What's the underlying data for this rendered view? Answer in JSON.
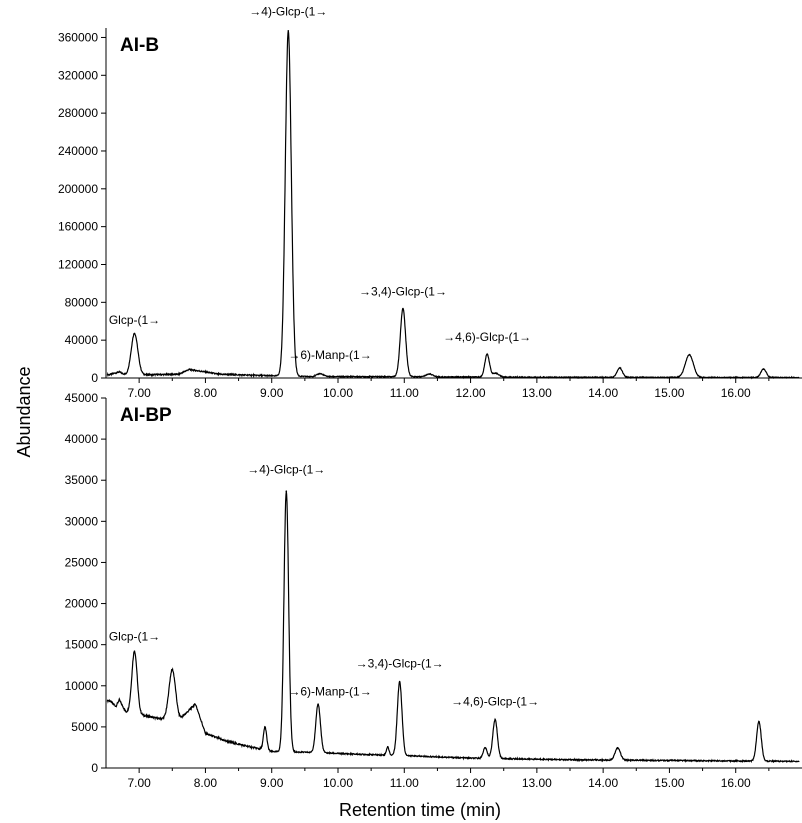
{
  "chart_data": {
    "ylabel": "Abundance",
    "xlabel": "Retention time (min)",
    "panels": [
      {
        "type": "line",
        "title": "AI-B",
        "xlim": [
          6.5,
          17.0
        ],
        "ylim": [
          0,
          370000
        ],
        "x_ticks": [
          "7.00",
          "8.00",
          "9.00",
          "10.00",
          "11.00",
          "12.00",
          "13.00",
          "14.00",
          "15.00",
          "16.00"
        ],
        "y_ticks": [
          "0",
          "40000",
          "80000",
          "120000",
          "160000",
          "200000",
          "240000",
          "280000",
          "320000",
          "360000"
        ],
        "baseline": [
          [
            6.55,
            3500
          ],
          [
            6.7,
            6500
          ],
          [
            6.8,
            3000
          ],
          [
            7.6,
            4000
          ],
          [
            7.75,
            9000
          ],
          [
            7.9,
            7500
          ],
          [
            8.2,
            4000
          ],
          [
            8.9,
            2500
          ],
          [
            9.6,
            1500
          ],
          [
            10.8,
            1500
          ],
          [
            11.5,
            1200
          ],
          [
            13.0,
            800
          ],
          [
            17.0,
            500
          ]
        ],
        "peaks": [
          {
            "rt": 6.93,
            "height": 44000,
            "width": 0.05
          },
          {
            "rt": 9.25,
            "height": 365000,
            "width": 0.045
          },
          {
            "rt": 9.73,
            "height": 3000,
            "width": 0.05
          },
          {
            "rt": 10.98,
            "height": 72000,
            "width": 0.04
          },
          {
            "rt": 11.38,
            "height": 3000,
            "width": 0.05
          },
          {
            "rt": 12.25,
            "height": 24000,
            "width": 0.035
          },
          {
            "rt": 12.38,
            "height": 4000,
            "width": 0.05
          },
          {
            "rt": 14.25,
            "height": 10000,
            "width": 0.04
          },
          {
            "rt": 15.3,
            "height": 24000,
            "width": 0.06
          },
          {
            "rt": 16.42,
            "height": 9000,
            "width": 0.04
          }
        ],
        "annotations": [
          {
            "text": "Glcp-(1→",
            "x": 6.93,
            "y": 57000
          },
          {
            "text": "→4)-Glcp-(1→",
            "x": 9.25,
            "y": 383000
          },
          {
            "text": "→6)-Manp-(1→",
            "x": 9.88,
            "y": 20000
          },
          {
            "text": "→3,4)-Glcp-(1→",
            "x": 10.98,
            "y": 87000
          },
          {
            "text": "→4,6)-Glcp-(1→",
            "x": 12.25,
            "y": 39000
          }
        ]
      },
      {
        "type": "line",
        "title": "AI-BP",
        "xlim": [
          6.5,
          17.0
        ],
        "ylim": [
          0,
          45000
        ],
        "x_ticks": [
          "7.00",
          "8.00",
          "9.00",
          "10.00",
          "11.00",
          "12.00",
          "13.00",
          "14.00",
          "15.00",
          "16.00"
        ],
        "y_ticks": [
          "0",
          "5000",
          "10000",
          "15000",
          "20000",
          "25000",
          "30000",
          "35000",
          "40000",
          "45000"
        ],
        "baseline": [
          [
            6.55,
            8200
          ],
          [
            6.65,
            7500
          ],
          [
            6.7,
            8300
          ],
          [
            6.8,
            6800
          ],
          [
            7.0,
            6500
          ],
          [
            7.3,
            6000
          ],
          [
            7.6,
            5800
          ],
          [
            7.85,
            7800
          ],
          [
            8.0,
            4200
          ],
          [
            8.3,
            3300
          ],
          [
            8.6,
            2700
          ],
          [
            9.0,
            2000
          ],
          [
            9.6,
            1900
          ],
          [
            10.2,
            1700
          ],
          [
            11.0,
            1500
          ],
          [
            12.0,
            1200
          ],
          [
            13.5,
            1000
          ],
          [
            17.0,
            800
          ]
        ],
        "peaks": [
          {
            "rt": 6.93,
            "height": 7600,
            "width": 0.04
          },
          {
            "rt": 7.5,
            "height": 6100,
            "width": 0.05
          },
          {
            "rt": 8.9,
            "height": 2800,
            "width": 0.025
          },
          {
            "rt": 9.22,
            "height": 31700,
            "width": 0.035
          },
          {
            "rt": 9.7,
            "height": 5900,
            "width": 0.035
          },
          {
            "rt": 10.75,
            "height": 1000,
            "width": 0.02
          },
          {
            "rt": 10.93,
            "height": 9000,
            "width": 0.035
          },
          {
            "rt": 12.22,
            "height": 1300,
            "width": 0.03
          },
          {
            "rt": 12.37,
            "height": 4700,
            "width": 0.035
          },
          {
            "rt": 14.22,
            "height": 1500,
            "width": 0.04
          },
          {
            "rt": 16.35,
            "height": 4800,
            "width": 0.035
          }
        ],
        "annotations": [
          {
            "text": "Glcp-(1→",
            "x": 6.93,
            "y": 15500
          },
          {
            "text": "→4)-Glcp-(1→",
            "x": 9.22,
            "y": 35800
          },
          {
            "text": "→6)-Manp-(1→",
            "x": 9.88,
            "y": 8800
          },
          {
            "text": "→3,4)-Glcp-(1→",
            "x": 10.93,
            "y": 12200
          },
          {
            "text": "→4,6)-Glcp-(1→",
            "x": 12.37,
            "y": 7600
          }
        ]
      }
    ]
  }
}
